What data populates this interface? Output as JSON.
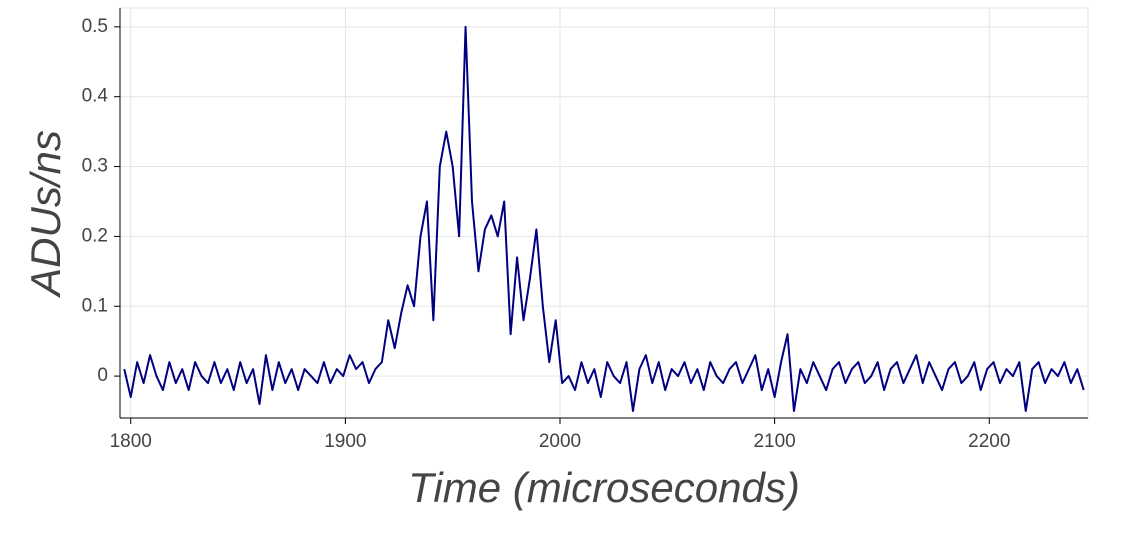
{
  "chart_data": {
    "type": "line",
    "xlabel": "Time (microseconds)",
    "ylabel": "ADUs/ns",
    "xlim": [
      1795,
      2246
    ],
    "ylim": [
      -0.06,
      0.527
    ],
    "xticks": [
      1800,
      1900,
      2000,
      2100,
      2200
    ],
    "yticks": [
      0,
      0.1,
      0.2,
      0.3,
      0.4,
      0.5
    ],
    "grid": true,
    "series": [
      {
        "color": "#000080",
        "x": [
          1797,
          1800,
          1803,
          1806,
          1809,
          1812,
          1815,
          1818,
          1821,
          1824,
          1827,
          1830,
          1833,
          1836,
          1839,
          1842,
          1845,
          1848,
          1851,
          1854,
          1857,
          1860,
          1863,
          1866,
          1869,
          1872,
          1875,
          1878,
          1881,
          1884,
          1887,
          1890,
          1893,
          1896,
          1899,
          1902,
          1905,
          1908,
          1911,
          1914,
          1917,
          1920,
          1923,
          1926,
          1929,
          1932,
          1935,
          1938,
          1941,
          1944,
          1947,
          1950,
          1953,
          1956,
          1959,
          1962,
          1965,
          1968,
          1971,
          1974,
          1977,
          1980,
          1983,
          1986,
          1989,
          1992,
          1995,
          1998,
          2001,
          2004,
          2007,
          2010,
          2013,
          2016,
          2019,
          2022,
          2025,
          2028,
          2031,
          2034,
          2037,
          2040,
          2043,
          2046,
          2049,
          2052,
          2055,
          2058,
          2061,
          2064,
          2067,
          2070,
          2073,
          2076,
          2079,
          2082,
          2085,
          2088,
          2091,
          2094,
          2097,
          2100,
          2103,
          2106,
          2109,
          2112,
          2115,
          2118,
          2121,
          2124,
          2127,
          2130,
          2133,
          2136,
          2139,
          2142,
          2145,
          2148,
          2151,
          2154,
          2157,
          2160,
          2163,
          2166,
          2169,
          2172,
          2175,
          2178,
          2181,
          2184,
          2187,
          2190,
          2193,
          2196,
          2199,
          2202,
          2205,
          2208,
          2211,
          2214,
          2217,
          2220,
          2223,
          2226,
          2229,
          2232,
          2235,
          2238,
          2241,
          2244
        ],
        "values": [
          0.01,
          -0.03,
          0.02,
          -0.01,
          0.03,
          0.0,
          -0.02,
          0.02,
          -0.01,
          0.01,
          -0.02,
          0.02,
          0.0,
          -0.01,
          0.02,
          -0.01,
          0.01,
          -0.02,
          0.02,
          -0.01,
          0.01,
          -0.04,
          0.03,
          -0.02,
          0.02,
          -0.01,
          0.01,
          -0.02,
          0.01,
          0.0,
          -0.01,
          0.02,
          -0.01,
          0.01,
          0.0,
          0.03,
          0.01,
          0.02,
          -0.01,
          0.01,
          0.02,
          0.08,
          0.04,
          0.09,
          0.13,
          0.1,
          0.2,
          0.25,
          0.08,
          0.3,
          0.35,
          0.3,
          0.2,
          0.5,
          0.25,
          0.15,
          0.21,
          0.23,
          0.2,
          0.25,
          0.06,
          0.17,
          0.08,
          0.14,
          0.21,
          0.1,
          0.02,
          0.08,
          -0.01,
          0.0,
          -0.02,
          0.02,
          -0.01,
          0.01,
          -0.03,
          0.02,
          0.0,
          -0.01,
          0.02,
          -0.05,
          0.01,
          0.03,
          -0.01,
          0.02,
          -0.02,
          0.01,
          0.0,
          0.02,
          -0.01,
          0.01,
          -0.02,
          0.02,
          0.0,
          -0.01,
          0.01,
          0.02,
          -0.01,
          0.01,
          0.03,
          -0.02,
          0.01,
          -0.03,
          0.02,
          0.06,
          -0.05,
          0.01,
          -0.01,
          0.02,
          0.0,
          -0.02,
          0.01,
          0.02,
          -0.01,
          0.01,
          0.02,
          -0.01,
          0.0,
          0.02,
          -0.02,
          0.01,
          0.02,
          -0.01,
          0.01,
          0.03,
          -0.01,
          0.02,
          0.0,
          -0.02,
          0.01,
          0.02,
          -0.01,
          0.0,
          0.02,
          -0.02,
          0.01,
          0.02,
          -0.01,
          0.01,
          0.0,
          0.02,
          -0.05,
          0.01,
          0.02,
          -0.01,
          0.01,
          0.0,
          0.02,
          -0.01,
          0.01,
          -0.02
        ]
      }
    ]
  }
}
